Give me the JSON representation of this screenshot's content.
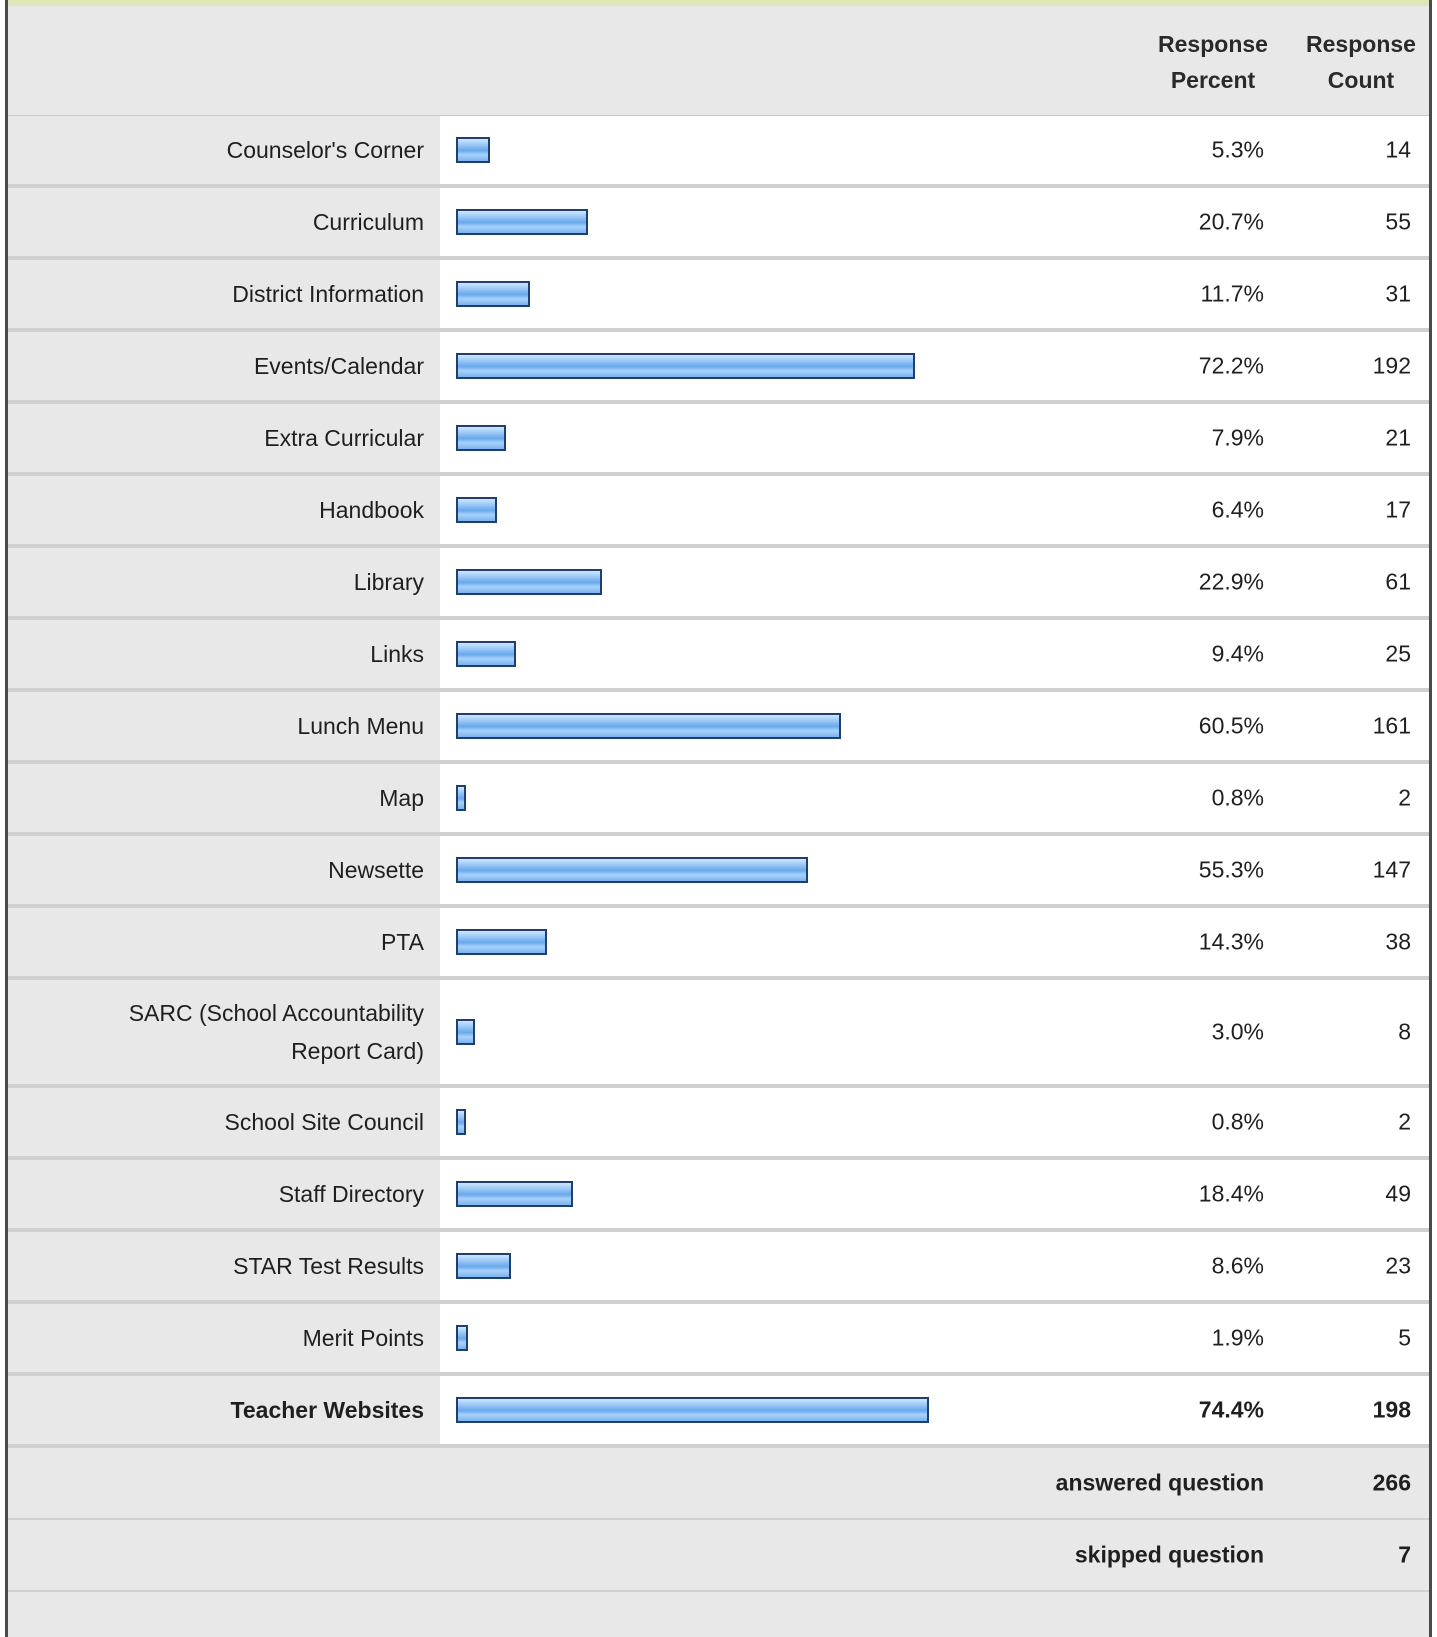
{
  "header": {
    "response_percent": "Response Percent",
    "response_count": "Response Count"
  },
  "colors": {
    "bar_fill": "#7ab2ee",
    "bar_border": "#1f3f6e",
    "label_bg": "#e8e8e8",
    "plot_bg": "#ffffff"
  },
  "chart_data": {
    "type": "bar",
    "orientation": "horizontal",
    "xlim": [
      0,
      100
    ],
    "categories": [
      "Counselor's Corner",
      "Curriculum",
      "District Information",
      "Events/Calendar",
      "Extra Curricular",
      "Handbook",
      "Library",
      "Links",
      "Lunch Menu",
      "Map",
      "Newsette",
      "PTA",
      "SARC (School Accountability Report Card)",
      "School Site Council",
      "Staff Directory",
      "STAR Test Results",
      "Merit Points",
      "Teacher Websites"
    ],
    "rows": [
      {
        "label": "Counselor's Corner",
        "percent": 5.3,
        "percent_text": "5.3%",
        "count": "14"
      },
      {
        "label": "Curriculum",
        "percent": 20.7,
        "percent_text": "20.7%",
        "count": "55"
      },
      {
        "label": "District Information",
        "percent": 11.7,
        "percent_text": "11.7%",
        "count": "31"
      },
      {
        "label": "Events/Calendar",
        "percent": 72.2,
        "percent_text": "72.2%",
        "count": "192"
      },
      {
        "label": "Extra Curricular",
        "percent": 7.9,
        "percent_text": "7.9%",
        "count": "21"
      },
      {
        "label": "Handbook",
        "percent": 6.4,
        "percent_text": "6.4%",
        "count": "17"
      },
      {
        "label": "Library",
        "percent": 22.9,
        "percent_text": "22.9%",
        "count": "61"
      },
      {
        "label": "Links",
        "percent": 9.4,
        "percent_text": "9.4%",
        "count": "25"
      },
      {
        "label": "Lunch Menu",
        "percent": 60.5,
        "percent_text": "60.5%",
        "count": "161"
      },
      {
        "label": "Map",
        "percent": 0.8,
        "percent_text": "0.8%",
        "count": "2"
      },
      {
        "label": "Newsette",
        "percent": 55.3,
        "percent_text": "55.3%",
        "count": "147"
      },
      {
        "label": "PTA",
        "percent": 14.3,
        "percent_text": "14.3%",
        "count": "38"
      },
      {
        "label": "SARC (School Accountability Report Card)",
        "percent": 3.0,
        "percent_text": "3.0%",
        "count": "8"
      },
      {
        "label": "School Site Council",
        "percent": 0.8,
        "percent_text": "0.8%",
        "count": "2"
      },
      {
        "label": "Staff Directory",
        "percent": 18.4,
        "percent_text": "18.4%",
        "count": "49"
      },
      {
        "label": "STAR Test Results",
        "percent": 8.6,
        "percent_text": "8.6%",
        "count": "23"
      },
      {
        "label": "Merit Points",
        "percent": 1.9,
        "percent_text": "1.9%",
        "count": "5"
      },
      {
        "label": "Teacher Websites",
        "percent": 74.4,
        "percent_text": "74.4%",
        "count": "198",
        "bold": true
      }
    ]
  },
  "summary": {
    "answered_label": "answered question",
    "answered_value": "266",
    "skipped_label": "skipped question",
    "skipped_value": "7"
  }
}
